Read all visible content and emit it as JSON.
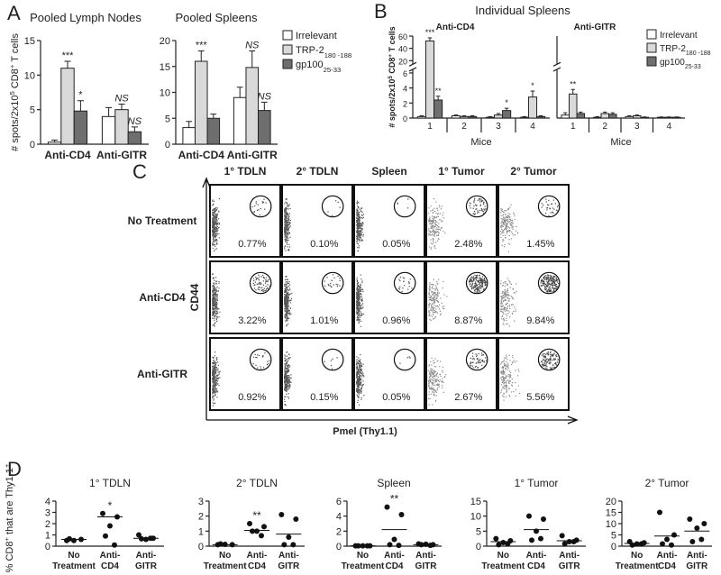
{
  "panel_labels": [
    "A",
    "B",
    "C",
    "D"
  ],
  "chart_data": [
    {
      "type": "bar",
      "title": "Pooled Lymph Nodes",
      "ylabel": [
        "# spots/2x10",
        {
          "sup": "5"
        },
        " CD8",
        {
          "sup": "+"
        },
        " T cells"
      ],
      "categories": [
        "Anti-CD4",
        "Anti-GITR"
      ],
      "series": [
        {
          "color": "#ffffff",
          "values": [
            0.3,
            4
          ],
          "errors": [
            0.3,
            1.3
          ]
        },
        {
          "color": "#d9d9d9",
          "values": [
            11,
            5
          ],
          "errors": [
            1,
            0.8
          ]
        },
        {
          "color": "#6e6e6e",
          "values": [
            4.8,
            1.8
          ],
          "errors": [
            1.5,
            0.7
          ]
        }
      ],
      "annotations": [
        {
          "category": 0,
          "series": 1,
          "text": "***"
        },
        {
          "category": 0,
          "series": 2,
          "text": "*"
        },
        {
          "category": 1,
          "series": 1,
          "text": "NS"
        },
        {
          "category": 1,
          "series": 2,
          "text": "NS"
        }
      ],
      "ylim": [
        0,
        15
      ],
      "yticks": [
        0,
        5,
        10,
        15
      ],
      "legend": false
    },
    {
      "type": "bar",
      "title": "Pooled Spleens",
      "categories": [
        "Anti-CD4",
        "Anti-GITR"
      ],
      "series": [
        {
          "name": "Irrelevant",
          "color": "#ffffff",
          "values": [
            3.2,
            9
          ],
          "errors": [
            1.2,
            2
          ]
        },
        {
          "name": [
            "TRP-2",
            {
              "sub": "180 -188"
            }
          ],
          "color": "#d9d9d9",
          "values": [
            16,
            14.8
          ],
          "errors": [
            2,
            3.2
          ]
        },
        {
          "name": [
            "gp100",
            {
              "sub": "25-33"
            }
          ],
          "color": "#6e6e6e",
          "values": [
            5,
            6.5
          ],
          "errors": [
            0.8,
            1.6
          ]
        }
      ],
      "annotations": [
        {
          "category": 0,
          "series": 1,
          "text": "***"
        },
        {
          "category": 1,
          "series": 1,
          "text": "NS"
        },
        {
          "category": 1,
          "series": 2,
          "text": "NS"
        }
      ],
      "ylim": [
        0,
        20
      ],
      "yticks": [
        0,
        5,
        10,
        15,
        20
      ],
      "legend": true
    },
    {
      "type": "bar",
      "suptitle": "Individual Spleens",
      "title": "Anti-CD4",
      "ylabel": [
        "# spots/2x10",
        {
          "sup": "5"
        },
        " CD8",
        {
          "sup": "+"
        },
        " T cells"
      ],
      "xlabel": "Mice",
      "categories": [
        "1",
        "2",
        "3",
        "4"
      ],
      "series": [
        {
          "color": "#ffffff",
          "values": [
            0.2,
            0.3,
            0.1,
            0.1
          ],
          "errors": [
            0.1,
            0.1,
            0.1,
            0.1
          ]
        },
        {
          "color": "#d9d9d9",
          "values": [
            52,
            0.2,
            0.4,
            2.8
          ],
          "errors": [
            5,
            0.1,
            0.2,
            0.8
          ]
        },
        {
          "color": "#6e6e6e",
          "values": [
            2.4,
            0.2,
            1.0,
            0.2
          ],
          "errors": [
            0.5,
            0.1,
            0.3,
            0.1
          ]
        }
      ],
      "annotations": [
        {
          "category": 0,
          "series": 1,
          "text": "***"
        },
        {
          "category": 0,
          "series": 2,
          "text": "**"
        },
        {
          "category": 2,
          "series": 2,
          "text": "*"
        },
        {
          "category": 3,
          "series": 1,
          "text": "*"
        }
      ],
      "ylim": [
        0,
        60
      ],
      "axis_break": [
        6,
        20
      ],
      "yticks": [
        0,
        2,
        4,
        6,
        20,
        40,
        60
      ],
      "legend": false
    },
    {
      "type": "bar",
      "title": "Anti-GITR",
      "xlabel": "Mice",
      "categories": [
        "1",
        "2",
        "3",
        "4"
      ],
      "series": [
        {
          "name": "Irrelevant",
          "color": "#ffffff",
          "values": [
            0.4,
            0.1,
            0.2,
            0.1
          ],
          "errors": [
            0.3,
            0.1,
            0.1,
            0.05
          ]
        },
        {
          "name": [
            "TRP-2",
            {
              "sub": "180 -188"
            }
          ],
          "color": "#d9d9d9",
          "values": [
            3.2,
            0.6,
            0.3,
            0.1
          ],
          "errors": [
            0.6,
            0.2,
            0.1,
            0.05
          ]
        },
        {
          "name": [
            "gp100",
            {
              "sub": "25-33"
            }
          ],
          "color": "#6e6e6e",
          "values": [
            0.6,
            0.5,
            0.1,
            0.1
          ],
          "errors": [
            0.2,
            0.2,
            0.05,
            0.05
          ]
        }
      ],
      "annotations": [
        {
          "category": 0,
          "series": 1,
          "text": "**"
        }
      ],
      "ylim": [
        0,
        60
      ],
      "axis_break": [
        6,
        20
      ],
      "legend": true
    },
    {
      "type": "dot",
      "title": "1° TDLN",
      "ylabel": [
        "% CD8",
        {
          "sup": "+"
        },
        " that are Thy1.1",
        {
          "sup": "+"
        }
      ],
      "categories": [
        [
          "No",
          "Treatment"
        ],
        [
          "Anti-",
          "CD4"
        ],
        [
          "Anti-",
          "GITR"
        ]
      ],
      "values": [
        [
          0.5,
          0.6,
          0.5,
          0.65
        ],
        [
          2.9,
          2.6,
          1.8,
          0.9,
          0.1
        ],
        [
          1.0,
          0.7,
          0.6,
          0.65,
          0.7
        ]
      ],
      "means": [
        0.6,
        2.6,
        0.7
      ],
      "annotations": [
        {
          "category": 1,
          "text": "*"
        }
      ],
      "ylim": [
        0,
        4
      ],
      "yticks": [
        0,
        1,
        2,
        3,
        4
      ]
    },
    {
      "type": "dot",
      "title": "2° TDLN",
      "categories": [
        [
          "No",
          "Treatment"
        ],
        [
          "Anti-",
          "CD4"
        ],
        [
          "Anti-",
          "GITR"
        ]
      ],
      "values": [
        [
          0.1,
          0.1,
          0.12,
          0.15
        ],
        [
          1.5,
          1.3,
          1.0,
          1.0,
          0.7
        ],
        [
          2.1,
          1.8,
          0.6,
          0.1,
          0.1
        ]
      ],
      "means": [
        0.1,
        1.05,
        0.8
      ],
      "annotations": [
        {
          "category": 1,
          "text": "**"
        }
      ],
      "ylim": [
        0,
        3
      ],
      "yticks": [
        0,
        1,
        2,
        3
      ]
    },
    {
      "type": "dot",
      "title": "Spleen",
      "categories": [
        [
          "No",
          "Treatment"
        ],
        [
          "Anti-",
          "CD4"
        ],
        [
          "Anti-",
          "GITR"
        ]
      ],
      "values": [
        [
          0.05,
          0.05,
          0.05,
          0.05,
          0.05
        ],
        [
          5.2,
          4.2,
          0.9,
          0.2,
          0.1
        ],
        [
          0.3,
          0.2,
          0.25,
          0.2,
          0.1
        ]
      ],
      "means": [
        0.05,
        2.2,
        0.2
      ],
      "annotations": [
        {
          "category": 1,
          "text": "**"
        }
      ],
      "ylim": [
        0,
        6
      ],
      "yticks": [
        0,
        2,
        4,
        6
      ]
    },
    {
      "type": "dot",
      "title": "1° Tumor",
      "categories": [
        [
          "No",
          "Treatment"
        ],
        [
          "Anti-",
          "CD4"
        ],
        [
          "Anti-",
          "GITR"
        ]
      ],
      "values": [
        [
          2.5,
          1.8,
          1.2,
          0.5,
          0.8
        ],
        [
          10,
          9,
          5,
          2,
          2.5
        ],
        [
          3.5,
          2,
          1.5,
          0.8,
          1.5
        ]
      ],
      "means": [
        1.5,
        5.5,
        1.8
      ],
      "ylim": [
        0,
        15
      ],
      "yticks": [
        0,
        5,
        10,
        15
      ]
    },
    {
      "type": "dot",
      "title": "2° Tumor",
      "categories": [
        [
          "No",
          "Treatment"
        ],
        [
          "Anti-",
          "CD4"
        ],
        [
          "Anti-",
          "GITR"
        ]
      ],
      "values": [
        [
          2,
          1.5,
          1,
          0.5,
          1
        ],
        [
          15,
          5,
          3,
          1,
          0.5
        ],
        [
          12,
          10,
          8,
          2,
          3
        ]
      ],
      "means": [
        1.2,
        4.5,
        6.7
      ],
      "ylim": [
        0,
        20
      ],
      "yticks": [
        0,
        5,
        10,
        15,
        20
      ]
    }
  ],
  "flow_panel": {
    "columns": [
      "1° TDLN",
      "2° TDLN",
      "Spleen",
      "1° Tumor",
      "2° Tumor"
    ],
    "rows": [
      {
        "label": "No Treatment",
        "values": [
          0.77,
          0.1,
          0.05,
          2.48,
          1.45
        ],
        "value_labels": [
          "0.77%",
          "0.10%",
          "0.05%",
          "2.48%",
          "1.45%"
        ]
      },
      {
        "label": "Anti-CD4",
        "values": [
          3.22,
          1.01,
          0.96,
          8.87,
          9.84
        ],
        "value_labels": [
          "3.22%",
          "1.01%",
          "0.96%",
          "8.87%",
          "9.84%"
        ]
      },
      {
        "label": "Anti-GITR",
        "values": [
          0.92,
          0.15,
          0.05,
          2.67,
          5.56
        ],
        "value_labels": [
          "0.92%",
          "0.15%",
          "0.05%",
          "2.67%",
          "5.56%"
        ]
      }
    ],
    "xlabel": "Pmel (Thy1.1)",
    "ylabel": "CD44"
  }
}
